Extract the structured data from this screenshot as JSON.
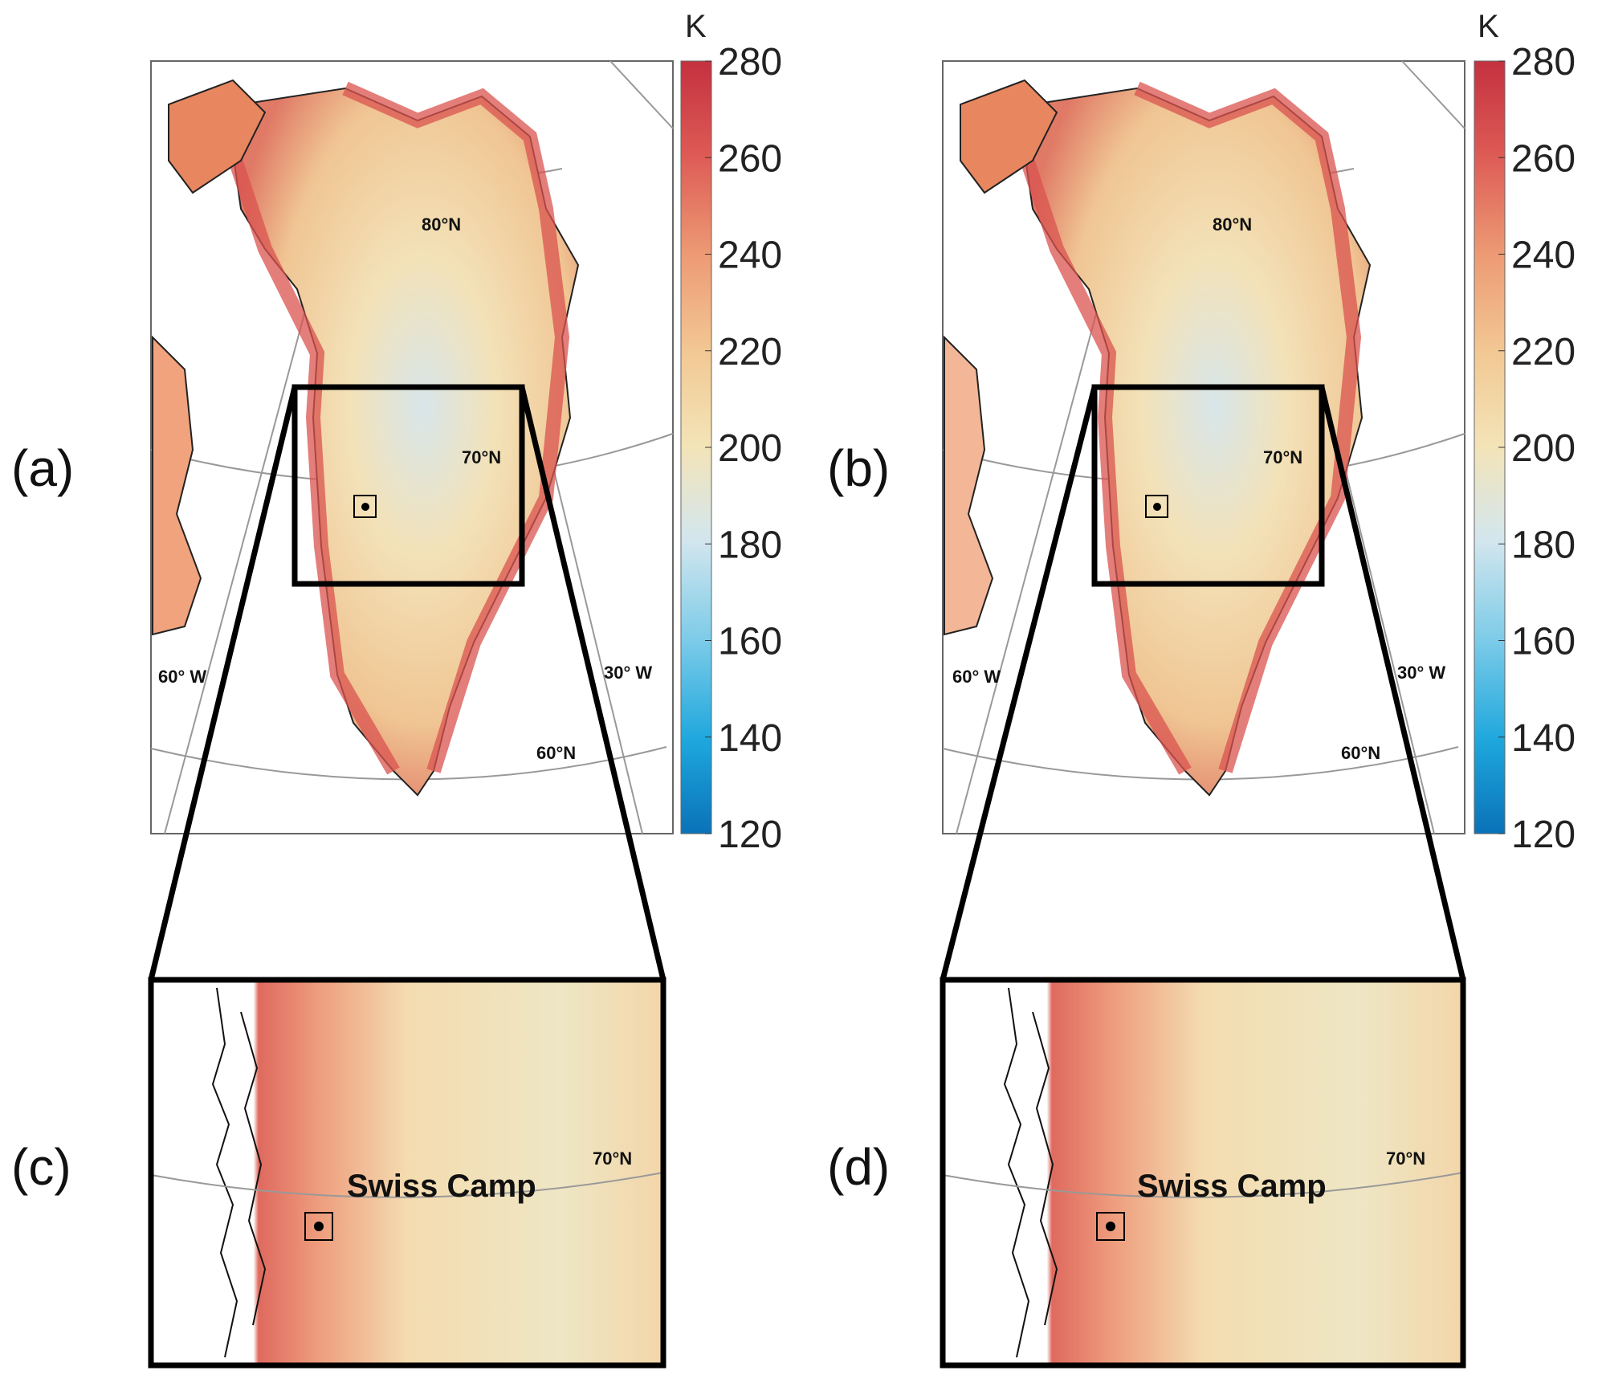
{
  "panels": {
    "a": {
      "tag": "(a)"
    },
    "b": {
      "tag": "(b)"
    },
    "c": {
      "tag": "(c)"
    },
    "d": {
      "tag": "(d)"
    }
  },
  "colorbar": {
    "unit": "K",
    "ticks": [
      "280",
      "260",
      "240",
      "220",
      "200",
      "180",
      "160",
      "140",
      "120"
    ],
    "colors": [
      "#c4313f",
      "#dd5a55",
      "#ed9a74",
      "#f2c994",
      "#f3e4b8",
      "#d3e6ee",
      "#7ccbe8",
      "#1ea7dd",
      "#0a72b8"
    ]
  },
  "map_labels": {
    "lat80": "80°N",
    "lat70": "70°N",
    "lat60": "60°N",
    "lon60": "60° W",
    "lon30": "30° W"
  },
  "site": {
    "name": "Swiss Camp"
  }
}
